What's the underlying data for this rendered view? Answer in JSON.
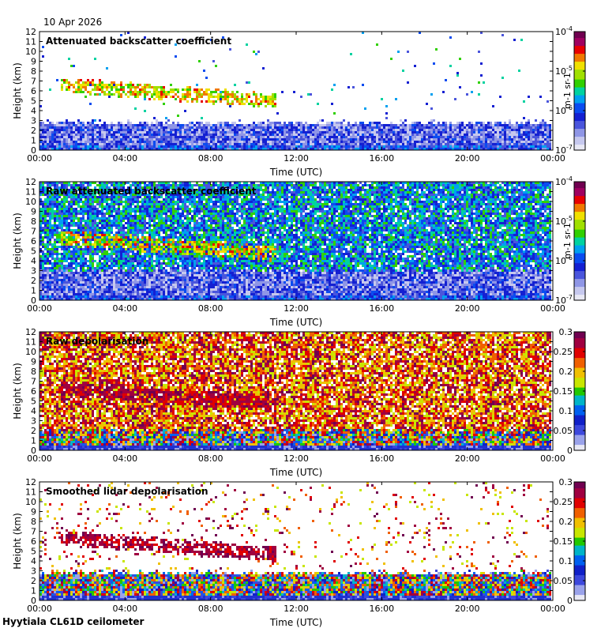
{
  "date": "10 Apr 2026",
  "footer": "Hyytiala CL61D ceilometer",
  "chart_data": [
    {
      "type": "heatmap",
      "title": "Attenuated backscatter coefficient",
      "xlabel": "Time (UTC)",
      "ylabel": "Height (km)",
      "xticks": [
        "00:00",
        "04:00",
        "08:00",
        "12:00",
        "16:00",
        "20:00",
        "00:00"
      ],
      "yticks": [
        "0",
        "1",
        "2",
        "3",
        "4",
        "5",
        "6",
        "7",
        "8",
        "9",
        "10",
        "11",
        "12"
      ],
      "ylim": [
        0,
        12
      ],
      "xlim_hours": [
        0,
        24
      ],
      "colorbar": {
        "scale": "log",
        "ticks": [
          "10-7",
          "10-6",
          "10-5",
          "10-4"
        ],
        "label": "m-1 sr-1"
      },
      "features": {
        "boundary_layer_top_km": 2.8,
        "cloud_layers": [
          {
            "start_h": 0.9,
            "end_h": 11.0,
            "base_km": 4.3,
            "top_km": 7.8,
            "colour": "green-yellow"
          }
        ],
        "noise_density": 0.015
      }
    },
    {
      "type": "heatmap",
      "title": "Raw attenuated backscatter coefficient",
      "xlabel": "Time (UTC)",
      "ylabel": "Height (km)",
      "xticks": [
        "00:00",
        "04:00",
        "08:00",
        "12:00",
        "16:00",
        "20:00",
        "00:00"
      ],
      "yticks": [
        "0",
        "1",
        "2",
        "3",
        "4",
        "5",
        "6",
        "7",
        "8",
        "9",
        "10",
        "11",
        "12"
      ],
      "ylim": [
        0,
        12
      ],
      "xlim_hours": [
        0,
        24
      ],
      "colorbar": {
        "scale": "log",
        "ticks": [
          "10-7",
          "10-6",
          "10-5",
          "10-4"
        ],
        "label": "m-1 sr-1"
      },
      "features": {
        "boundary_layer_top_km": 3.0,
        "cloud_layers": [
          {
            "start_h": 1.0,
            "end_h": 11.0,
            "base_km": 4.2,
            "top_km": 7.5,
            "colour": "green-yellow"
          }
        ],
        "noise_density": 0.9
      }
    },
    {
      "type": "heatmap",
      "title": "Raw depolarisation",
      "xlabel": "Time (UTC)",
      "ylabel": "Height (km)",
      "xticks": [
        "00:00",
        "04:00",
        "08:00",
        "12:00",
        "16:00",
        "20:00",
        "00:00"
      ],
      "yticks": [
        "0",
        "1",
        "2",
        "3",
        "4",
        "5",
        "6",
        "7",
        "8",
        "9",
        "10",
        "11",
        "12"
      ],
      "ylim": [
        0,
        12
      ],
      "xlim_hours": [
        0,
        24
      ],
      "colorbar": {
        "scale": "linear",
        "ticks": [
          "0",
          "0.05",
          "0.1",
          "0.15",
          "0.2",
          "0.25",
          "0.3"
        ],
        "range": [
          0,
          0.3
        ]
      },
      "features": {
        "boundary_layer_top_km": 2.0,
        "cloud_layers": [
          {
            "start_h": 1.0,
            "end_h": 11.0,
            "base_km": 4.5,
            "top_km": 7.5,
            "colour": "red-brown"
          }
        ],
        "noise_density": 0.85
      }
    },
    {
      "type": "heatmap",
      "title": "Smoothed lidar depolarisation",
      "xlabel": "Time (UTC)",
      "ylabel": "Height (km)",
      "xticks": [
        "00:00",
        "04:00",
        "08:00",
        "12:00",
        "16:00",
        "20:00",
        "00:00"
      ],
      "yticks": [
        "0",
        "1",
        "2",
        "3",
        "4",
        "5",
        "6",
        "7",
        "8",
        "9",
        "10",
        "11",
        "12"
      ],
      "ylim": [
        0,
        12
      ],
      "xlim_hours": [
        0,
        24
      ],
      "colorbar": {
        "scale": "linear",
        "ticks": [
          "0",
          "0.05",
          "0.1",
          "0.15",
          "0.2",
          "0.25",
          "0.3"
        ],
        "range": [
          0,
          0.3
        ]
      },
      "features": {
        "boundary_layer_top_km": 2.8,
        "cloud_layers": [
          {
            "start_h": 1.0,
            "end_h": 11.0,
            "base_km": 4.3,
            "top_km": 7.5,
            "colour": "red-brown"
          }
        ],
        "noise_density": 0.06
      }
    }
  ]
}
